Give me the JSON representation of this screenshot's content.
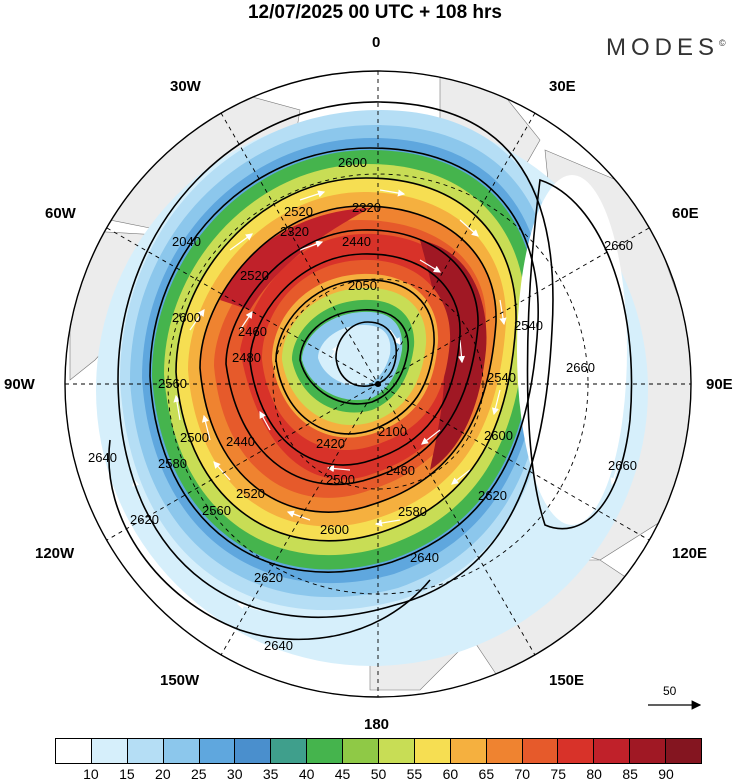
{
  "title": "12/07/2025  00 UTC  + 108 hrs",
  "brand": "MODES",
  "brand_mark": "©",
  "longitude_labels": {
    "lon_0": "0",
    "lon_30e": "30E",
    "lon_60e": "60E",
    "lon_90e": "90E",
    "lon_120e": "120E",
    "lon_150e": "150E",
    "lon_180": "180",
    "lon_150w": "150W",
    "lon_120w": "120W",
    "lon_90w": "90W",
    "lon_60w": "60W",
    "lon_30w": "30W"
  },
  "contour_labels": [
    "2600",
    "2520",
    "2320",
    "2440",
    "2320",
    "2040",
    "2050",
    "2600",
    "2520",
    "2480",
    "2560",
    "2460",
    "2660",
    "2540",
    "2540",
    "2660",
    "2600",
    "2100",
    "2420",
    "2440",
    "2500",
    "2580",
    "2480",
    "2660",
    "2500",
    "2520",
    "2620",
    "2580",
    "2560",
    "2600",
    "2640",
    "2620",
    "2620",
    "2640",
    "2640"
  ],
  "reference_vector": "50",
  "colorbar": {
    "ticks": [
      "10",
      "15",
      "20",
      "25",
      "30",
      "35",
      "40",
      "45",
      "50",
      "55",
      "60",
      "65",
      "70",
      "75",
      "80",
      "85",
      "90"
    ],
    "colors": [
      "#ffffff",
      "#d6effb",
      "#b5def5",
      "#8cc7ec",
      "#5fa7de",
      "#4a8fcd",
      "#3f9f8c",
      "#45b44d",
      "#8fc946",
      "#c8dd55",
      "#f6de52",
      "#f5b03f",
      "#ef8330",
      "#e65a2b",
      "#d83229",
      "#c0212a",
      "#a01824",
      "#841520"
    ]
  },
  "colors": {
    "land": "#ececec",
    "graticule": "#000000",
    "contour": "#000000",
    "arrows": "#ffffff"
  }
}
